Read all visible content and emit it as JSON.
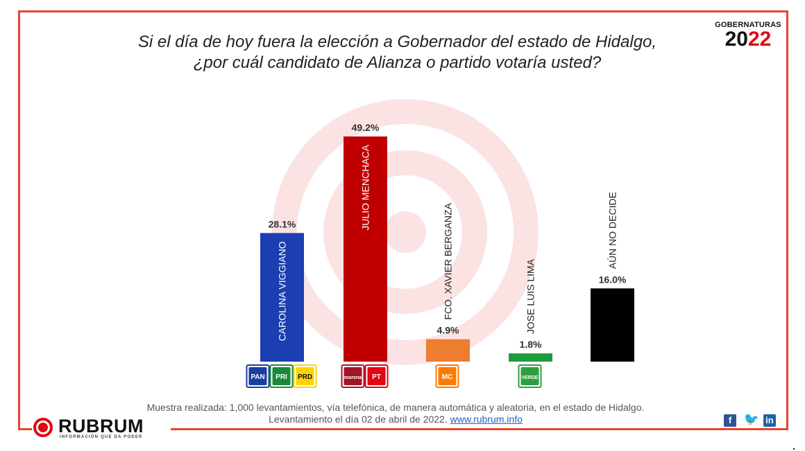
{
  "header": {
    "question_line1": "Si el día de hoy fuera la elección a Gobernador del estado de Hidalgo,",
    "question_line2": "¿por cuál  candidato de Alianza o partido votaría usted?",
    "badge_top": "GOBERNATURAS",
    "badge_year_a": "20",
    "badge_year_b": "22"
  },
  "chart_data": {
    "type": "bar",
    "title": "",
    "xlabel": "",
    "ylabel": "",
    "ylim": [
      0,
      50
    ],
    "grid": false,
    "categories": [
      "CAROLINA VIGGIANO",
      "JULIO MENCHACA",
      "FCO. XAVIER BERGANZA",
      "JOSE LUIS LIMA",
      "AÚN NO DECIDE"
    ],
    "values": [
      28.1,
      49.2,
      4.9,
      1.8,
      16.0
    ],
    "value_labels": [
      "28.1%",
      "49.2%",
      "4.9%",
      "1.8%",
      "16.0%"
    ],
    "colors": [
      "#1b3fb0",
      "#c00000",
      "#ed7d31",
      "#1f9a3c",
      "#000000"
    ],
    "label_inside": [
      true,
      true,
      false,
      false,
      false
    ],
    "party_logos": [
      [
        {
          "text": "PAN",
          "color": "#1b3fa0"
        },
        {
          "text": "PRI",
          "color": "#1a8a3a"
        },
        {
          "text": "PRD",
          "color": "#ffd400"
        }
      ],
      [
        {
          "text": "morena",
          "color": "#a31526"
        },
        {
          "text": "PT",
          "color": "#e30613"
        }
      ],
      [
        {
          "text": "MC",
          "color": "#ff7a00"
        }
      ],
      [
        {
          "text": "VERDE",
          "color": "#2e9e3e"
        }
      ],
      []
    ]
  },
  "footer": {
    "line1": "Muestra realizada: 1,000 levantamientos, vía telefónica, de manera automática y aleatoria, en el estado de Hidalgo.",
    "line2_prefix": "Levantamiento el día 02 de abril de 2022.",
    "link": "www.rubrum.info"
  },
  "brand": {
    "name": "RUBRUM",
    "tagline": "INFORMACIÓN QUE DA PODER"
  },
  "social": {
    "facebook": "f",
    "twitter": "🐦",
    "linkedin": "in"
  }
}
